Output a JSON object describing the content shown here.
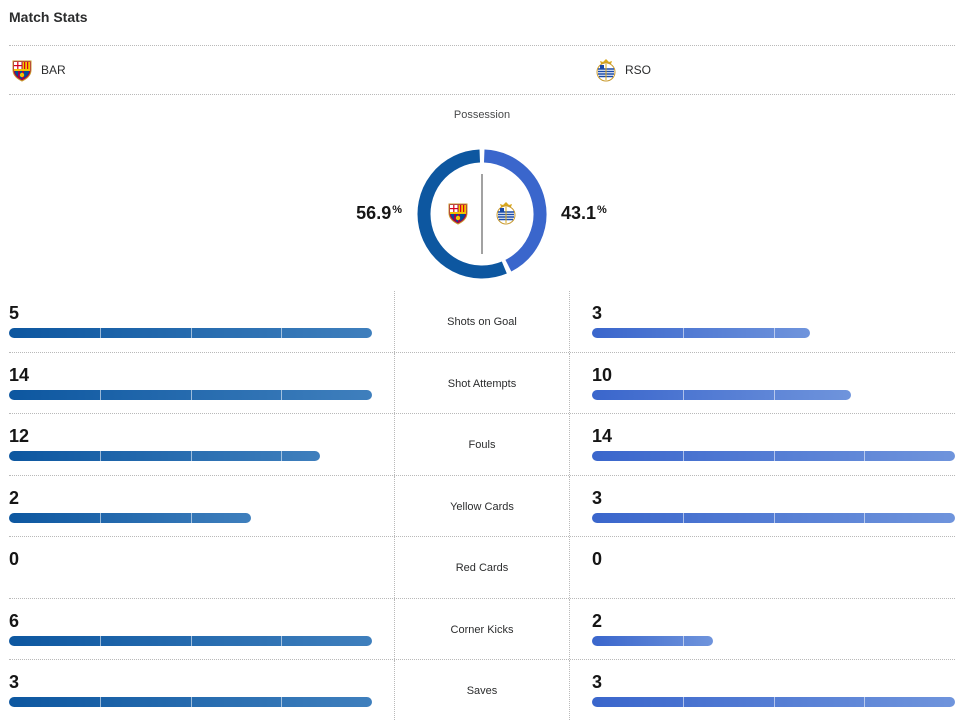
{
  "header": {
    "title": "Match Stats"
  },
  "teams": {
    "home": {
      "abbr": "BAR",
      "logo_icon": "barcelona-crest-icon",
      "color": "#0d57a0"
    },
    "away": {
      "abbr": "RSO",
      "logo_icon": "real-sociedad-crest-icon",
      "color": "#3a66cc"
    }
  },
  "possession": {
    "label": "Possession",
    "home_value": "56.9",
    "away_value": "43.1",
    "unit": "%",
    "home_fraction": 0.569,
    "away_fraction": 0.431
  },
  "stats": [
    {
      "label": "Shots on Goal",
      "home": 5,
      "away": 3
    },
    {
      "label": "Shot Attempts",
      "home": 14,
      "away": 10
    },
    {
      "label": "Fouls",
      "home": 12,
      "away": 14
    },
    {
      "label": "Yellow Cards",
      "home": 2,
      "away": 3
    },
    {
      "label": "Red Cards",
      "home": 0,
      "away": 0
    },
    {
      "label": "Corner Kicks",
      "home": 6,
      "away": 2
    },
    {
      "label": "Saves",
      "home": 3,
      "away": 3
    }
  ]
}
